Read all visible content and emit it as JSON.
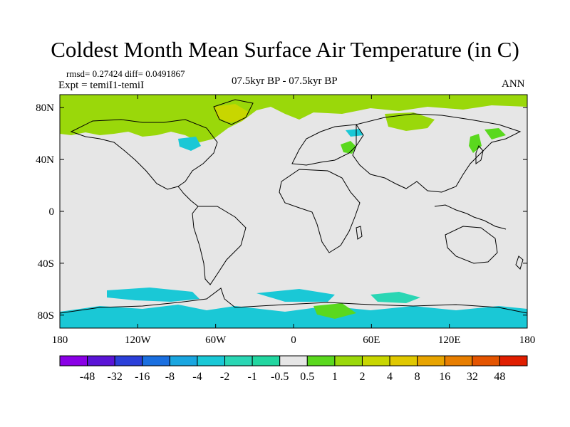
{
  "title": "Coldest Month Mean Surface Air Temperature (in C)",
  "stats": "rmsd= 0.27424 diff= 0.0491867",
  "experiment": "Expt = temiI1-temiI",
  "period": "07.5kyr BP - 07.5kyr BP",
  "season": "ANN",
  "map": {
    "lon_range": [
      -180,
      180
    ],
    "lat_range": [
      -90,
      90
    ],
    "background_color": "#e6e6e6",
    "lon_ticks": [
      {
        "value": -180,
        "label": "180"
      },
      {
        "value": -120,
        "label": "120W"
      },
      {
        "value": -60,
        "label": "60W"
      },
      {
        "value": 0,
        "label": "0"
      },
      {
        "value": 60,
        "label": "60E"
      },
      {
        "value": 120,
        "label": "120E"
      },
      {
        "value": 180,
        "label": "180"
      }
    ],
    "lat_ticks": [
      {
        "value": 80,
        "label": "80N"
      },
      {
        "value": 40,
        "label": "40N"
      },
      {
        "value": 0,
        "label": "0"
      },
      {
        "value": -40,
        "label": "40S"
      },
      {
        "value": -80,
        "label": "80S"
      }
    ]
  },
  "colorbar": {
    "colors": [
      "#8a00e6",
      "#5a14d6",
      "#2b3fd9",
      "#1a6fe0",
      "#1aa6e0",
      "#1ac8d6",
      "#2ad6b4",
      "#22d6a0",
      "#e6e6e6",
      "#5ad81e",
      "#9ad80a",
      "#c8d600",
      "#e0c800",
      "#e8a400",
      "#e87e00",
      "#e45400",
      "#e01e00"
    ],
    "labels": [
      "-48",
      "-32",
      "-16",
      "-8",
      "-4",
      "-2",
      "-1",
      "-0.5",
      "0.5",
      "1",
      "2",
      "4",
      "8",
      "16",
      "32",
      "48"
    ]
  }
}
